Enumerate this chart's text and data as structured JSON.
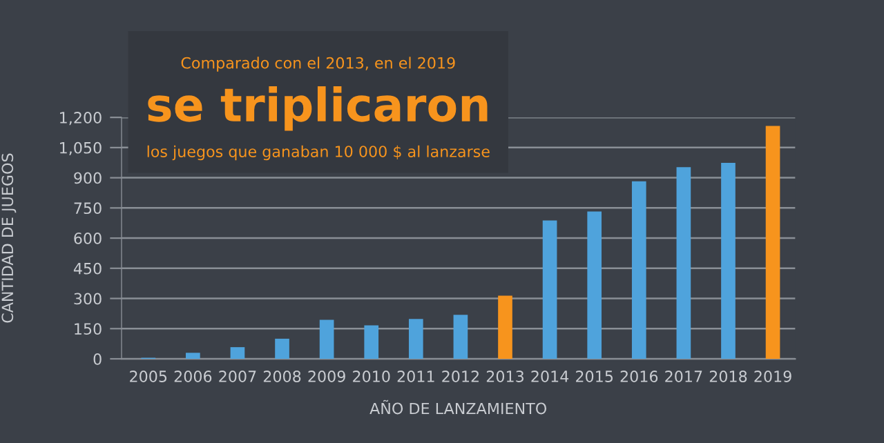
{
  "chart_data": {
    "type": "bar",
    "title": "se triplicaron",
    "subtitle": "Comparado con el 2013, en el 2019",
    "annotations": [
      "los juegos que ganaban 10 000 $ al lanzarse"
    ],
    "xlabel": "AÑO DE LANZAMIENTO",
    "ylabel": "CANTIDAD DE JUEGOS",
    "categories": [
      "2005",
      "2006",
      "2007",
      "2008",
      "2009",
      "2010",
      "2011",
      "2012",
      "2013",
      "2014",
      "2015",
      "2016",
      "2017",
      "2018",
      "2019"
    ],
    "values": [
      5,
      30,
      58,
      100,
      194,
      166,
      198,
      219,
      314,
      688,
      732,
      882,
      953,
      974,
      1158
    ],
    "colors": [
      "#4fa3dc",
      "#4fa3dc",
      "#4fa3dc",
      "#4fa3dc",
      "#4fa3dc",
      "#4fa3dc",
      "#4fa3dc",
      "#4fa3dc",
      "#f7941d",
      "#4fa3dc",
      "#4fa3dc",
      "#4fa3dc",
      "#4fa3dc",
      "#4fa3dc",
      "#f7941d"
    ],
    "ylim": [
      0,
      1200
    ],
    "yticks": [
      0,
      150,
      300,
      450,
      600,
      750,
      900,
      {
        "value": 1050,
        "label": "1,050"
      },
      {
        "value": 1200,
        "label": "1,200"
      }
    ],
    "grid": "y"
  }
}
